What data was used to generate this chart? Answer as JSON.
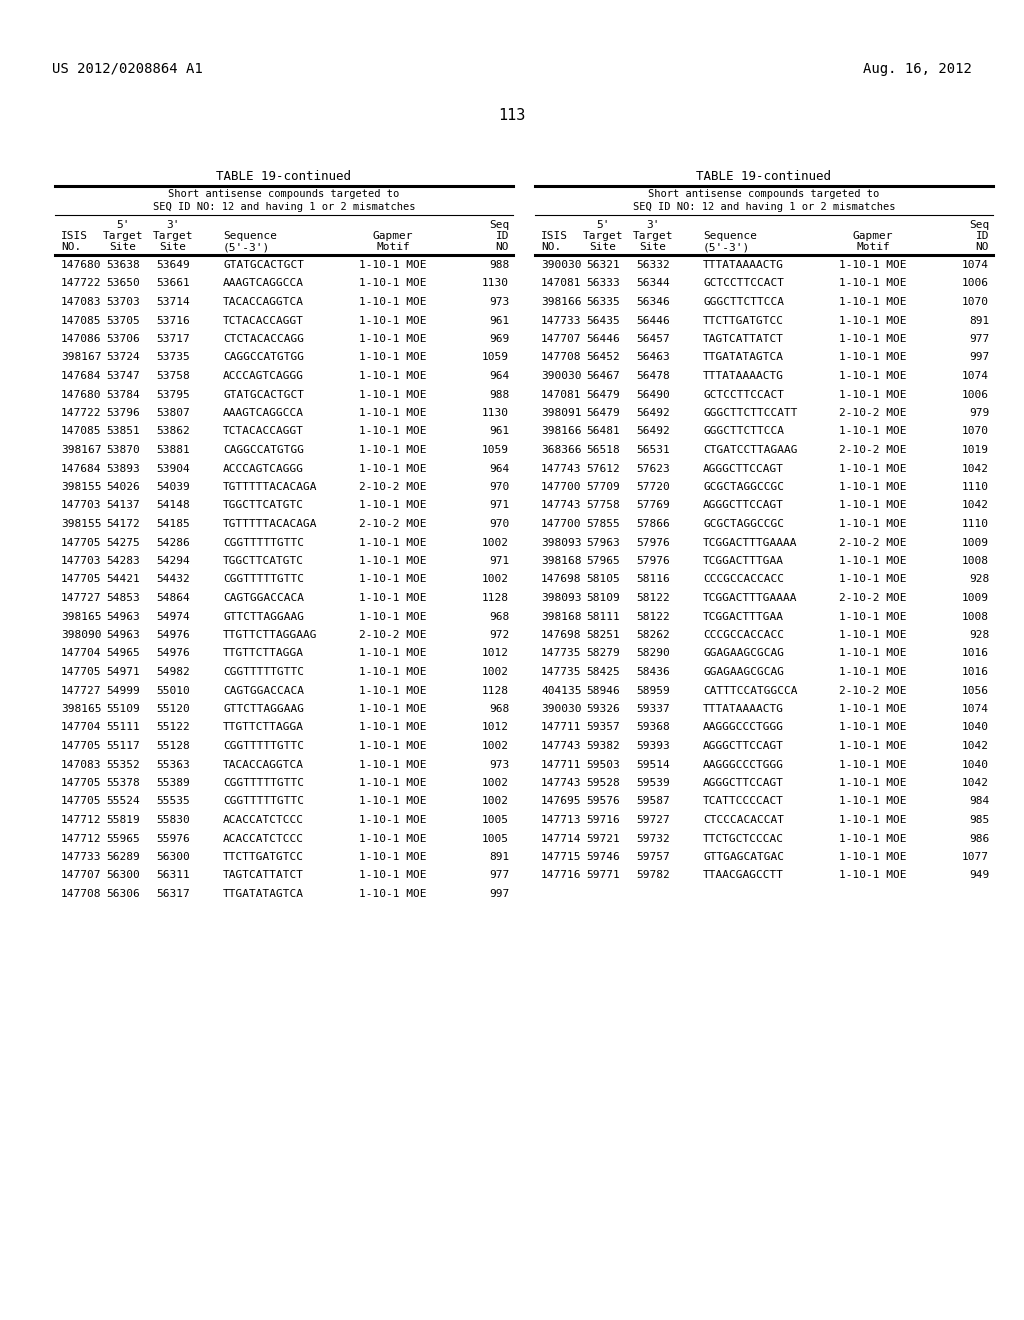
{
  "header_left": "US 2012/0208864 A1",
  "header_right": "Aug. 16, 2012",
  "page_number": "113",
  "table_title": "TABLE 19-continued",
  "table_subtitle1": "Short antisense compounds targeted to",
  "table_subtitle2": "SEQ ID NO: 12 and having 1 or 2 mismatches",
  "left_data": [
    [
      "147680",
      "53638",
      "53649",
      "GTATGCACTGCT",
      "1-10-1 MOE",
      "988"
    ],
    [
      "147722",
      "53650",
      "53661",
      "AAAGTCAGGCCA",
      "1-10-1 MOE",
      "1130"
    ],
    [
      "147083",
      "53703",
      "53714",
      "TACACCAGGTCA",
      "1-10-1 MOE",
      "973"
    ],
    [
      "147085",
      "53705",
      "53716",
      "TCTACACCAGGT",
      "1-10-1 MOE",
      "961"
    ],
    [
      "147086",
      "53706",
      "53717",
      "CTCTACACCAGG",
      "1-10-1 MOE",
      "969"
    ],
    [
      "398167",
      "53724",
      "53735",
      "CAGGCCATGTGG",
      "1-10-1 MOE",
      "1059"
    ],
    [
      "147684",
      "53747",
      "53758",
      "ACCCAGTCAGGG",
      "1-10-1 MOE",
      "964"
    ],
    [
      "147680",
      "53784",
      "53795",
      "GTATGCACTGCT",
      "1-10-1 MOE",
      "988"
    ],
    [
      "147722",
      "53796",
      "53807",
      "AAAGTCAGGCCA",
      "1-10-1 MOE",
      "1130"
    ],
    [
      "147085",
      "53851",
      "53862",
      "TCTACACCAGGT",
      "1-10-1 MOE",
      "961"
    ],
    [
      "398167",
      "53870",
      "53881",
      "CAGGCCATGTGG",
      "1-10-1 MOE",
      "1059"
    ],
    [
      "147684",
      "53893",
      "53904",
      "ACCCAGTCAGGG",
      "1-10-1 MOE",
      "964"
    ],
    [
      "398155",
      "54026",
      "54039",
      "TGTTTTTACACAGA",
      "2-10-2 MOE",
      "970"
    ],
    [
      "147703",
      "54137",
      "54148",
      "TGGCTTCATGTC",
      "1-10-1 MOE",
      "971"
    ],
    [
      "398155",
      "54172",
      "54185",
      "TGTTTTTACACAGA",
      "2-10-2 MOE",
      "970"
    ],
    [
      "147705",
      "54275",
      "54286",
      "CGGTTTTTGTTC",
      "1-10-1 MOE",
      "1002"
    ],
    [
      "147703",
      "54283",
      "54294",
      "TGGCTTCATGTC",
      "1-10-1 MOE",
      "971"
    ],
    [
      "147705",
      "54421",
      "54432",
      "CGGTTTTTGTTC",
      "1-10-1 MOE",
      "1002"
    ],
    [
      "147727",
      "54853",
      "54864",
      "CAGTGGACCACA",
      "1-10-1 MOE",
      "1128"
    ],
    [
      "398165",
      "54963",
      "54974",
      "GTTCTTAGGAAG",
      "1-10-1 MOE",
      "968"
    ],
    [
      "398090",
      "54963",
      "54976",
      "TTGTTCTTAGGAAG",
      "2-10-2 MOE",
      "972"
    ],
    [
      "147704",
      "54965",
      "54976",
      "TTGTTCTTAGGA",
      "1-10-1 MOE",
      "1012"
    ],
    [
      "147705",
      "54971",
      "54982",
      "CGGTTTTTGTTC",
      "1-10-1 MOE",
      "1002"
    ],
    [
      "147727",
      "54999",
      "55010",
      "CAGTGGACCACA",
      "1-10-1 MOE",
      "1128"
    ],
    [
      "398165",
      "55109",
      "55120",
      "GTTCTTAGGAAG",
      "1-10-1 MOE",
      "968"
    ],
    [
      "147704",
      "55111",
      "55122",
      "TTGTTCTTAGGA",
      "1-10-1 MOE",
      "1012"
    ],
    [
      "147705",
      "55117",
      "55128",
      "CGGTTTTTGTTC",
      "1-10-1 MOE",
      "1002"
    ],
    [
      "147083",
      "55352",
      "55363",
      "TACACCAGGTCA",
      "1-10-1 MOE",
      "973"
    ],
    [
      "147705",
      "55378",
      "55389",
      "CGGTTTTTGTTC",
      "1-10-1 MOE",
      "1002"
    ],
    [
      "147705",
      "55524",
      "55535",
      "CGGTTTTTGTTC",
      "1-10-1 MOE",
      "1002"
    ],
    [
      "147712",
      "55819",
      "55830",
      "ACACCATCTCCC",
      "1-10-1 MOE",
      "1005"
    ],
    [
      "147712",
      "55965",
      "55976",
      "ACACCATCTCCC",
      "1-10-1 MOE",
      "1005"
    ],
    [
      "147733",
      "56289",
      "56300",
      "TTCTTGATGTCC",
      "1-10-1 MOE",
      "891"
    ],
    [
      "147707",
      "56300",
      "56311",
      "TAGTCATTATCT",
      "1-10-1 MOE",
      "977"
    ],
    [
      "147708",
      "56306",
      "56317",
      "TTGATATAGTCA",
      "1-10-1 MOE",
      "997"
    ]
  ],
  "right_data": [
    [
      "390030",
      "56321",
      "56332",
      "TTTATAAAACTG",
      "1-10-1 MOE",
      "1074"
    ],
    [
      "147081",
      "56333",
      "56344",
      "GCTCCTTCCACT",
      "1-10-1 MOE",
      "1006"
    ],
    [
      "398166",
      "56335",
      "56346",
      "GGGCTTCTTCCA",
      "1-10-1 MOE",
      "1070"
    ],
    [
      "147733",
      "56435",
      "56446",
      "TTCTTGATGTCC",
      "1-10-1 MOE",
      "891"
    ],
    [
      "147707",
      "56446",
      "56457",
      "TAGTCATTATCT",
      "1-10-1 MOE",
      "977"
    ],
    [
      "147708",
      "56452",
      "56463",
      "TTGATATAGTCA",
      "1-10-1 MOE",
      "997"
    ],
    [
      "390030",
      "56467",
      "56478",
      "TTTATAAAACTG",
      "1-10-1 MOE",
      "1074"
    ],
    [
      "147081",
      "56479",
      "56490",
      "GCTCCTTCCACT",
      "1-10-1 MOE",
      "1006"
    ],
    [
      "398091",
      "56479",
      "56492",
      "GGGCTTCTTCCATT",
      "2-10-2 MOE",
      "979"
    ],
    [
      "398166",
      "56481",
      "56492",
      "GGGCTTCTTCCA",
      "1-10-1 MOE",
      "1070"
    ],
    [
      "368366",
      "56518",
      "56531",
      "CTGATCCTTAGAAG",
      "2-10-2 MOE",
      "1019"
    ],
    [
      "147743",
      "57612",
      "57623",
      "AGGGCTTCCAGT",
      "1-10-1 MOE",
      "1042"
    ],
    [
      "147700",
      "57709",
      "57720",
      "GCGCTAGGCCGC",
      "1-10-1 MOE",
      "1110"
    ],
    [
      "147743",
      "57758",
      "57769",
      "AGGGCTTCCAGT",
      "1-10-1 MOE",
      "1042"
    ],
    [
      "147700",
      "57855",
      "57866",
      "GCGCTAGGCCGC",
      "1-10-1 MOE",
      "1110"
    ],
    [
      "398093",
      "57963",
      "57976",
      "TCGGACTTTGAAAA",
      "2-10-2 MOE",
      "1009"
    ],
    [
      "398168",
      "57965",
      "57976",
      "TCGGACTTTGAA",
      "1-10-1 MOE",
      "1008"
    ],
    [
      "147698",
      "58105",
      "58116",
      "CCCGCCACCACC",
      "1-10-1 MOE",
      "928"
    ],
    [
      "398093",
      "58109",
      "58122",
      "TCGGACTTTGAAAA",
      "2-10-2 MOE",
      "1009"
    ],
    [
      "398168",
      "58111",
      "58122",
      "TCGGACTTTGAA",
      "1-10-1 MOE",
      "1008"
    ],
    [
      "147698",
      "58251",
      "58262",
      "CCCGCCACCACC",
      "1-10-1 MOE",
      "928"
    ],
    [
      "147735",
      "58279",
      "58290",
      "GGAGAAGCGCAG",
      "1-10-1 MOE",
      "1016"
    ],
    [
      "147735",
      "58425",
      "58436",
      "GGAGAAGCGCAG",
      "1-10-1 MOE",
      "1016"
    ],
    [
      "404135",
      "58946",
      "58959",
      "CATTTCCATGGCCA",
      "2-10-2 MOE",
      "1056"
    ],
    [
      "390030",
      "59326",
      "59337",
      "TTTATAAAACTG",
      "1-10-1 MOE",
      "1074"
    ],
    [
      "147711",
      "59357",
      "59368",
      "AAGGGCCCTGGG",
      "1-10-1 MOE",
      "1040"
    ],
    [
      "147743",
      "59382",
      "59393",
      "AGGGCTTCCAGT",
      "1-10-1 MOE",
      "1042"
    ],
    [
      "147711",
      "59503",
      "59514",
      "AAGGGCCCTGGG",
      "1-10-1 MOE",
      "1040"
    ],
    [
      "147743",
      "59528",
      "59539",
      "AGGGCTTCCAGT",
      "1-10-1 MOE",
      "1042"
    ],
    [
      "147695",
      "59576",
      "59587",
      "TCATTCCCCACT",
      "1-10-1 MOE",
      "984"
    ],
    [
      "147713",
      "59716",
      "59727",
      "CTCCCACACCAT",
      "1-10-1 MOE",
      "985"
    ],
    [
      "147714",
      "59721",
      "59732",
      "TTCTGCTCCCAC",
      "1-10-1 MOE",
      "986"
    ],
    [
      "147715",
      "59746",
      "59757",
      "GTTGAGCATGAC",
      "1-10-1 MOE",
      "1077"
    ],
    [
      "147716",
      "59771",
      "59782",
      "TTAACGAGCCTT",
      "1-10-1 MOE",
      "949"
    ]
  ]
}
